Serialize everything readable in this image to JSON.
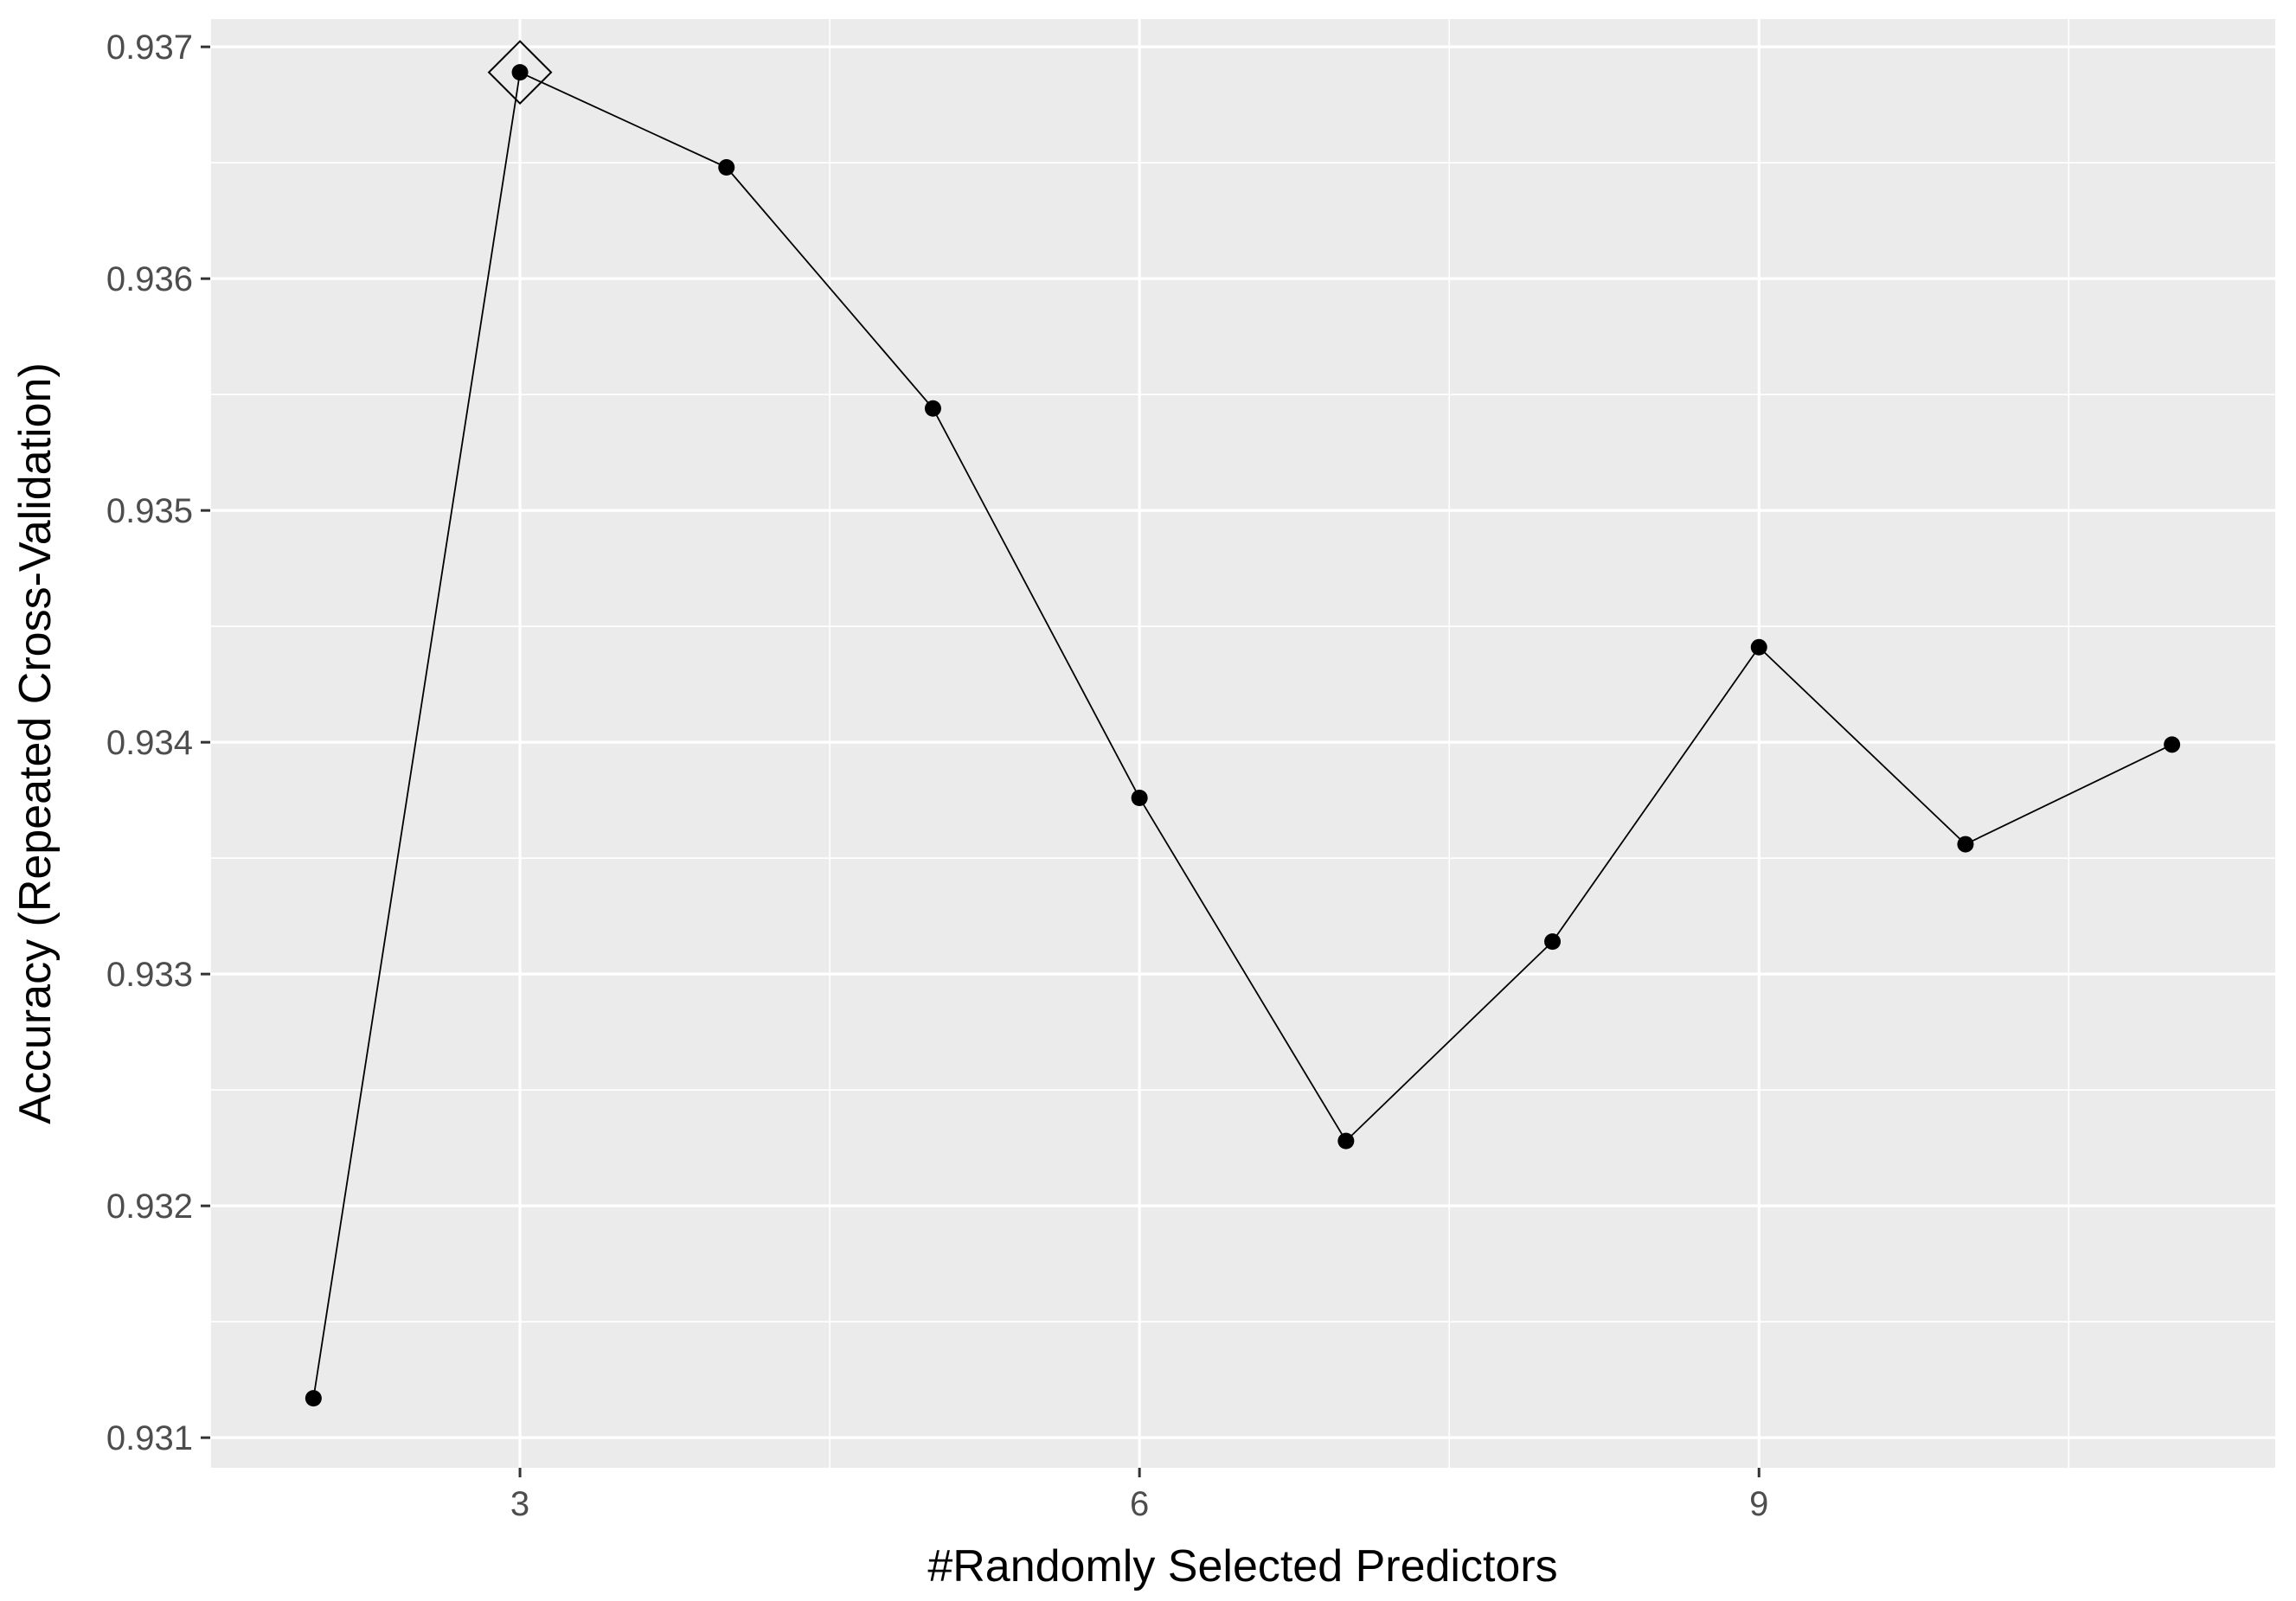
{
  "chart_data": {
    "type": "line",
    "title": "",
    "xlabel": "#Randomly Selected Predictors",
    "ylabel": "Accuracy (Repeated Cross-Validation)",
    "xlim": [
      1.5,
      11.5
    ],
    "ylim": [
      0.93087,
      0.93712
    ],
    "x_ticks": [
      3,
      6,
      9
    ],
    "x_tick_labels": [
      "3",
      "6",
      "9"
    ],
    "x_minor_ticks": [
      1.5,
      4.5,
      7.5,
      10.5
    ],
    "y_ticks": [
      0.931,
      0.932,
      0.933,
      0.934,
      0.935,
      0.936,
      0.937
    ],
    "y_tick_labels": [
      "0.931",
      "0.932",
      "0.933",
      "0.934",
      "0.935",
      "0.936",
      "0.937"
    ],
    "y_minor_ticks": [
      0.9315,
      0.9325,
      0.9335,
      0.9345,
      0.9355,
      0.9365
    ],
    "grid": true,
    "panel_background": "#ebebeb",
    "grid_color": "#ffffff",
    "line_color": "#000000",
    "point_color": "#000000",
    "series": [
      {
        "x": [
          2,
          3,
          4,
          5,
          6,
          7,
          8,
          9,
          10,
          11
        ],
        "values": [
          0.93117,
          0.93689,
          0.93648,
          0.93544,
          0.93376,
          0.93228,
          0.93314,
          0.93441,
          0.93356,
          0.93399
        ]
      }
    ],
    "best_point_marker": {
      "shape": "diamond",
      "x": 3,
      "y": 0.93689
    }
  }
}
